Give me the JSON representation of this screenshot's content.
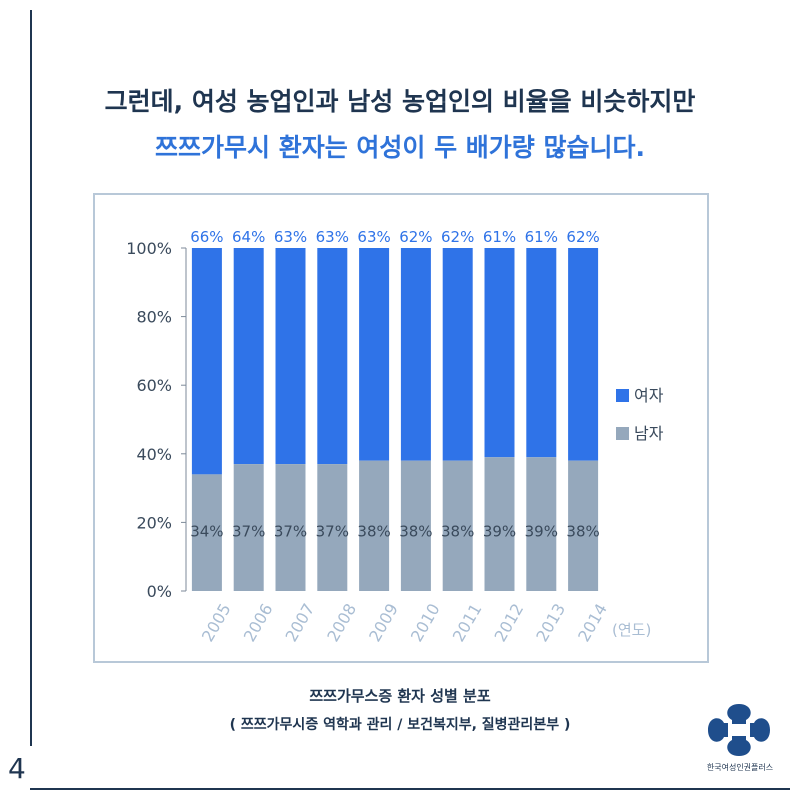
{
  "page_number": "4",
  "headline": {
    "line1": "그런데, 여성 농업인과 남성 농업인의 비율을 비슷하지만",
    "line2": "쯔쯔가무시 환자는 여성이 두 배가량 많습니다."
  },
  "caption": {
    "title": "쯔쯔가무스증 환자 성별 분포",
    "source": "( 쯔쯔가무시증 역학과 관리 / 보건복지부, 질병관리본부 )"
  },
  "logo": {
    "text": "한국여성인권플러스"
  },
  "colors": {
    "female": "#2f73e8",
    "male": "#95a8bc",
    "axis_text": "#3a4a5c",
    "year_text": "#a9bdd3"
  },
  "chart_data": {
    "type": "bar",
    "stacked": true,
    "title": "",
    "xlabel": "(연도)",
    "ylabel": "",
    "ylim": [
      0,
      100
    ],
    "yticks": [
      "0%",
      "20%",
      "40%",
      "60%",
      "80%",
      "100%"
    ],
    "categories": [
      "2005",
      "2006",
      "2007",
      "2008",
      "2009",
      "2010",
      "2011",
      "2012",
      "2013",
      "2014"
    ],
    "series": [
      {
        "name": "남자",
        "values": [
          34,
          37,
          37,
          37,
          38,
          38,
          38,
          39,
          39,
          38
        ],
        "labels": [
          "34%",
          "37%",
          "37%",
          "37%",
          "38%",
          "38%",
          "38%",
          "39%",
          "39%",
          "38%"
        ]
      },
      {
        "name": "여자",
        "values": [
          66,
          64,
          63,
          63,
          63,
          62,
          62,
          61,
          61,
          62
        ],
        "labels": [
          "66%",
          "64%",
          "63%",
          "63%",
          "63%",
          "62%",
          "62%",
          "61%",
          "61%",
          "62%"
        ]
      }
    ],
    "legend": {
      "position": "right",
      "order": [
        "여자",
        "남자"
      ]
    },
    "grid": false
  }
}
